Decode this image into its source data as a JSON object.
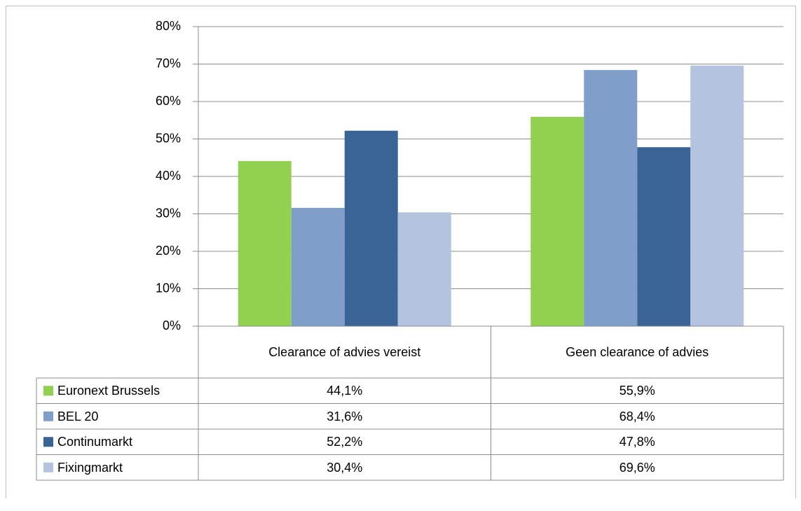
{
  "chart_data": {
    "type": "bar",
    "categories": [
      "Clearance of advies vereist",
      "Geen clearance of advies"
    ],
    "series": [
      {
        "name": "Euronext Brussels",
        "color": "#92d050",
        "values": [
          44.1,
          55.9
        ],
        "value_labels": [
          "44,1%",
          "55,9%"
        ]
      },
      {
        "name": "BEL 20",
        "color": "#7f9fca",
        "values": [
          31.6,
          68.4
        ],
        "value_labels": [
          "31,6%",
          "68,4%"
        ]
      },
      {
        "name": "Continumarkt",
        "color": "#3b6496",
        "values": [
          52.2,
          47.8
        ],
        "value_labels": [
          "52,2%",
          "47,8%"
        ]
      },
      {
        "name": "Fixingmarkt",
        "color": "#b4c3de",
        "values": [
          30.4,
          69.6
        ],
        "value_labels": [
          "30,4%",
          "69,6%"
        ]
      }
    ],
    "ylim": [
      0,
      80
    ],
    "yticks": [
      {
        "value": 0,
        "label": "0%"
      },
      {
        "value": 10,
        "label": "10%"
      },
      {
        "value": 20,
        "label": "20%"
      },
      {
        "value": 30,
        "label": "30%"
      },
      {
        "value": 40,
        "label": "40%"
      },
      {
        "value": 50,
        "label": "50%"
      },
      {
        "value": 60,
        "label": "60%"
      },
      {
        "value": 70,
        "label": "70%"
      },
      {
        "value": 80,
        "label": "80%"
      }
    ],
    "grid": true
  }
}
